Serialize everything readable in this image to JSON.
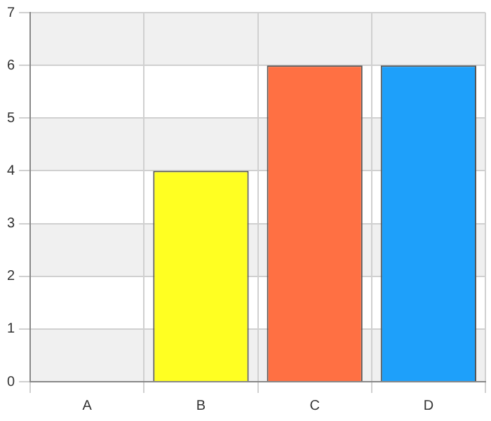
{
  "chart_data": {
    "type": "bar",
    "categories": [
      "A",
      "B",
      "C",
      "D"
    ],
    "values": [
      0,
      4,
      6,
      6
    ],
    "colors": [
      "#ffff22",
      "#ffff22",
      "#ff7043",
      "#1ea0fa"
    ],
    "ylim": [
      0,
      7
    ],
    "yticks": [
      0,
      1,
      2,
      3,
      4,
      5,
      6,
      7
    ],
    "grid": true
  }
}
